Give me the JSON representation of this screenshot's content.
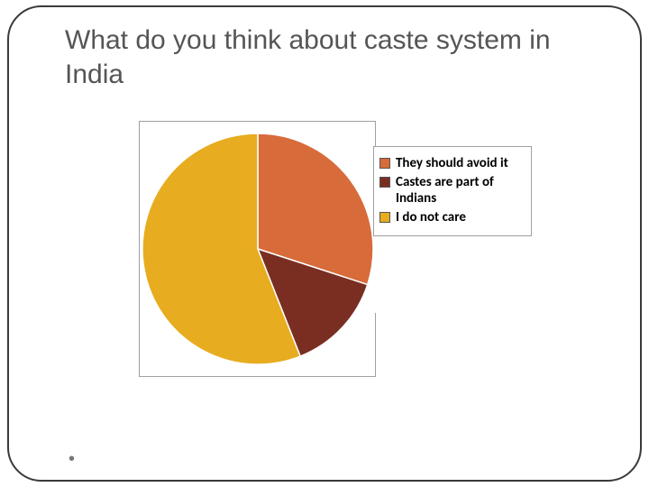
{
  "title": "What do you think about caste system in India",
  "chart": {
    "type": "pie",
    "background_color": "#ffffff",
    "border_color": "#a0a0a0",
    "slice_border_color": "#ffffff",
    "slice_border_width": 1.5,
    "radius": 128,
    "start_angle_deg": -90,
    "series": [
      {
        "label": "They should avoid it",
        "value": 30,
        "color": "#d76b3a"
      },
      {
        "label": "Castes are part of Indians",
        "value": 14,
        "color": "#7a2e22"
      },
      {
        "label": "I do not care",
        "value": 56,
        "color": "#e7ac1f"
      }
    ],
    "legend": {
      "title_fontsize": 15,
      "font_weight": "700",
      "text_color": "#000000",
      "swatch_border": "#555555",
      "position": "right"
    }
  }
}
